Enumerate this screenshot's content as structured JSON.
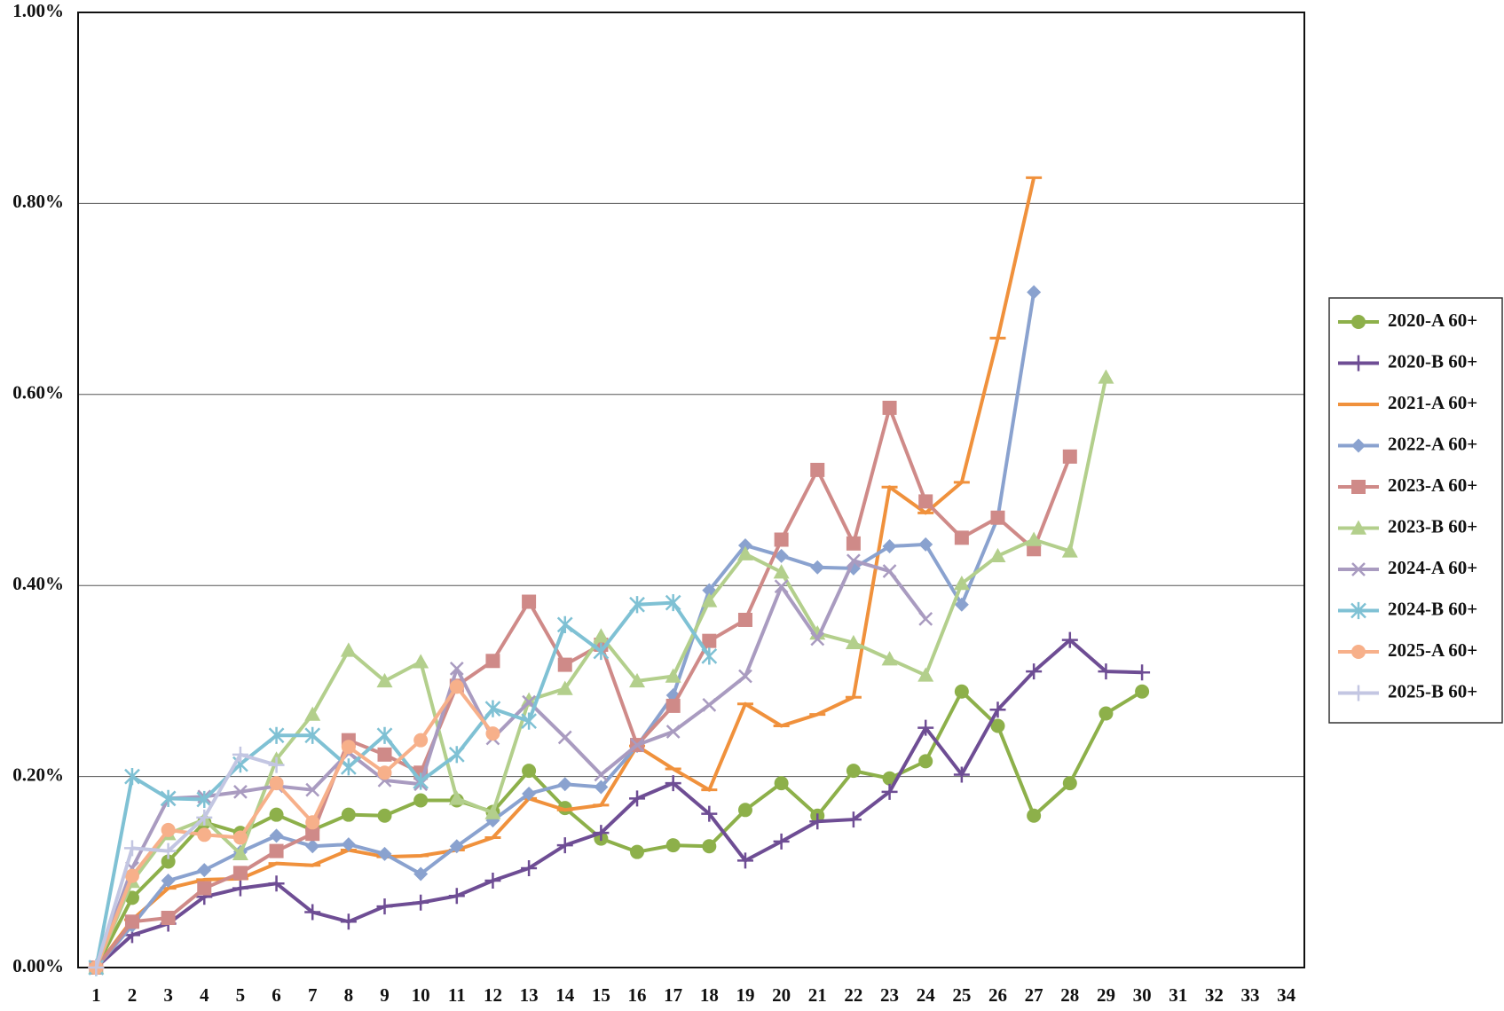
{
  "chart_data": {
    "type": "line",
    "categories": [
      "1",
      "2",
      "3",
      "4",
      "5",
      "6",
      "7",
      "8",
      "9",
      "10",
      "11",
      "12",
      "13",
      "14",
      "15",
      "16",
      "17",
      "18",
      "19",
      "20",
      "21",
      "22",
      "23",
      "24",
      "25",
      "26",
      "27",
      "28",
      "29",
      "30",
      "31",
      "32",
      "33",
      "34"
    ],
    "ylim": [
      0,
      1
    ],
    "yticks": [
      {
        "value": 0,
        "label": "0.00%"
      },
      {
        "value": 0.2,
        "label": "0.20%"
      },
      {
        "value": 0.4,
        "label": "0.40%"
      },
      {
        "value": 0.6,
        "label": "0.60%"
      },
      {
        "value": 0.8,
        "label": "0.80%"
      },
      {
        "value": 1,
        "label": "1.00%"
      }
    ],
    "grid": true,
    "legend": "right",
    "series": [
      {
        "name": "2020-A 60+",
        "color": "#8db04a",
        "marker": "circle",
        "values": [
          0,
          0.073,
          0.111,
          0.152,
          0.141,
          0.16,
          0.144,
          0.16,
          0.159,
          0.175,
          0.175,
          0.163,
          0.206,
          0.167,
          0.135,
          0.121,
          0.128,
          0.127,
          0.165,
          0.193,
          0.159,
          0.206,
          0.198,
          0.216,
          0.289,
          0.253,
          0.159,
          0.193,
          0.266,
          0.289,
          null,
          null,
          null,
          null
        ]
      },
      {
        "name": "2020-B 60+",
        "color": "#6e4d94",
        "marker": "plus",
        "values": [
          0,
          0.034,
          0.046,
          0.074,
          0.083,
          0.088,
          0.058,
          0.048,
          0.064,
          0.068,
          0.075,
          0.091,
          0.104,
          0.128,
          0.141,
          0.177,
          0.193,
          0.161,
          0.112,
          0.132,
          0.153,
          0.155,
          0.184,
          0.251,
          0.202,
          0.27,
          0.31,
          0.343,
          0.31,
          0.309,
          null,
          null,
          null,
          null
        ]
      },
      {
        "name": "2021-A 60+",
        "color": "#f0913c",
        "marker": "dash",
        "values": [
          0,
          0.05,
          0.083,
          0.092,
          0.093,
          0.109,
          0.107,
          0.123,
          0.116,
          0.117,
          0.123,
          0.136,
          0.177,
          0.165,
          0.17,
          0.232,
          0.208,
          0.186,
          0.276,
          0.253,
          0.265,
          0.283,
          0.503,
          0.476,
          0.508,
          0.659,
          0.827,
          null,
          null,
          null,
          null,
          null,
          null,
          null
        ]
      },
      {
        "name": "2022-A 60+",
        "color": "#8aa2cf",
        "marker": "diamond",
        "values": [
          0,
          0.044,
          0.091,
          0.102,
          0.121,
          0.138,
          0.127,
          0.129,
          0.119,
          0.098,
          0.127,
          0.154,
          0.182,
          0.192,
          0.189,
          0.232,
          0.285,
          0.395,
          0.442,
          0.431,
          0.419,
          0.418,
          0.441,
          0.443,
          0.38,
          0.471,
          0.707,
          null,
          null,
          null,
          null,
          null,
          null,
          null
        ]
      },
      {
        "name": "2023-A 60+",
        "color": "#cf8a88",
        "marker": "square",
        "values": [
          0,
          0.048,
          0.052,
          0.083,
          0.099,
          0.122,
          0.14,
          0.238,
          0.223,
          0.204,
          0.295,
          0.321,
          0.383,
          0.317,
          0.338,
          0.233,
          0.274,
          0.342,
          0.364,
          0.448,
          0.521,
          0.444,
          0.586,
          0.488,
          0.45,
          0.471,
          0.438,
          0.535,
          null,
          null,
          null,
          null,
          null,
          null
        ]
      },
      {
        "name": "2023-B 60+",
        "color": "#b3cf8c",
        "marker": "triangle",
        "values": [
          0,
          0.09,
          0.14,
          0.155,
          0.119,
          0.218,
          0.265,
          0.332,
          0.3,
          0.32,
          0.177,
          0.162,
          0.28,
          0.292,
          0.347,
          0.3,
          0.305,
          0.384,
          0.433,
          0.414,
          0.35,
          0.34,
          0.323,
          0.306,
          0.402,
          0.431,
          0.448,
          0.436,
          0.618,
          null,
          null,
          null,
          null,
          null
        ]
      },
      {
        "name": "2024-A 60+",
        "color": "#a99bc0",
        "marker": "cross",
        "values": [
          0,
          0.104,
          0.177,
          0.179,
          0.184,
          0.19,
          0.186,
          0.225,
          0.196,
          0.192,
          0.313,
          0.24,
          0.278,
          0.241,
          0.202,
          0.233,
          0.247,
          0.275,
          0.305,
          0.399,
          0.344,
          0.426,
          0.415,
          0.365,
          null,
          null,
          null,
          null,
          null,
          null,
          null,
          null,
          null,
          null
        ]
      },
      {
        "name": "2024-B 60+",
        "color": "#7fc1d4",
        "marker": "star",
        "values": [
          0,
          0.2,
          0.177,
          0.176,
          0.213,
          0.243,
          0.243,
          0.21,
          0.243,
          0.195,
          0.223,
          0.271,
          0.258,
          0.359,
          0.331,
          0.38,
          0.382,
          0.326,
          null,
          null,
          null,
          null,
          null,
          null,
          null,
          null,
          null,
          null,
          null,
          null,
          null,
          null,
          null,
          null
        ]
      },
      {
        "name": "2025-A 60+",
        "color": "#f7b08a",
        "marker": "circle",
        "values": [
          0,
          0.096,
          0.144,
          0.139,
          0.136,
          0.193,
          0.152,
          0.231,
          0.204,
          0.238,
          0.294,
          0.245,
          null,
          null,
          null,
          null,
          null,
          null,
          null,
          null,
          null,
          null,
          null,
          null,
          null,
          null,
          null,
          null,
          null,
          null,
          null,
          null,
          null,
          null
        ]
      },
      {
        "name": "2025-B 60+",
        "color": "#c3c6e2",
        "marker": "plus",
        "values": [
          0,
          0.125,
          0.122,
          0.157,
          0.223,
          0.212,
          null,
          null,
          null,
          null,
          null,
          null,
          null,
          null,
          null,
          null,
          null,
          null,
          null,
          null,
          null,
          null,
          null,
          null,
          null,
          null,
          null,
          null,
          null,
          null,
          null,
          null,
          null,
          null
        ]
      }
    ]
  }
}
